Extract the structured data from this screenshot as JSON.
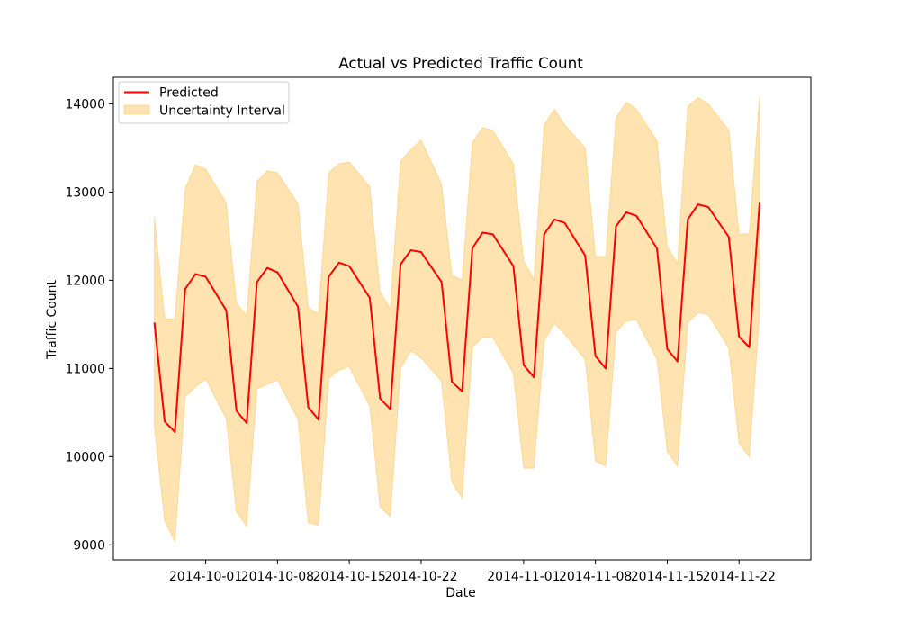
{
  "chart_data": {
    "type": "line",
    "title": "Actual vs Predicted Traffic Count",
    "xlabel": "Date",
    "ylabel": "Traffic Count",
    "xlim": [
      "2014-09-22",
      "2014-11-29"
    ],
    "ylim": [
      8830,
      14300
    ],
    "x_ticks": [
      "2014-10-01",
      "2014-10-08",
      "2014-10-15",
      "2014-10-22",
      "2014-11-01",
      "2014-11-08",
      "2014-11-15",
      "2014-11-22"
    ],
    "y_ticks": [
      9000,
      10000,
      11000,
      12000,
      13000,
      14000
    ],
    "grid": false,
    "legend_position": "upper left",
    "colors": {
      "predicted": "#ff0000",
      "interval": "#ffa500"
    },
    "series": [
      {
        "name": "Predicted",
        "type": "line",
        "x": [
          "2014-09-26",
          "2014-09-27",
          "2014-09-28",
          "2014-09-29",
          "2014-09-30",
          "2014-10-01",
          "2014-10-03",
          "2014-10-04",
          "2014-10-05",
          "2014-10-06",
          "2014-10-07",
          "2014-10-08",
          "2014-10-10",
          "2014-10-11",
          "2014-10-12",
          "2014-10-13",
          "2014-10-14",
          "2014-10-15",
          "2014-10-17",
          "2014-10-18",
          "2014-10-19",
          "2014-10-20",
          "2014-10-21",
          "2014-10-22",
          "2014-10-24",
          "2014-10-25",
          "2014-10-26",
          "2014-10-27",
          "2014-10-28",
          "2014-10-29",
          "2014-10-31",
          "2014-11-01",
          "2014-11-02",
          "2014-11-03",
          "2014-11-04",
          "2014-11-05",
          "2014-11-07",
          "2014-11-08",
          "2014-11-09",
          "2014-11-10",
          "2014-11-11",
          "2014-11-12",
          "2014-11-14",
          "2014-11-15",
          "2014-11-16",
          "2014-11-17",
          "2014-11-18",
          "2014-11-19",
          "2014-11-21",
          "2014-11-22",
          "2014-11-23",
          "2014-11-24"
        ],
        "y": [
          11520,
          10400,
          10280,
          11900,
          12070,
          12040,
          11660,
          10520,
          10380,
          11980,
          12140,
          12090,
          11700,
          10560,
          10420,
          12040,
          12200,
          12160,
          11800,
          10660,
          10540,
          12180,
          12340,
          12320,
          11980,
          10850,
          10740,
          12360,
          12540,
          12520,
          12160,
          11040,
          10900,
          12520,
          12690,
          12650,
          12280,
          11140,
          11000,
          12610,
          12770,
          12730,
          12360,
          11220,
          11080,
          12690,
          12860,
          12830,
          12490,
          11360,
          11240,
          12880
        ]
      },
      {
        "name": "Uncertainty Interval",
        "type": "band",
        "x": [
          "2014-09-26",
          "2014-09-27",
          "2014-09-28",
          "2014-09-29",
          "2014-09-30",
          "2014-10-01",
          "2014-10-03",
          "2014-10-04",
          "2014-10-05",
          "2014-10-06",
          "2014-10-07",
          "2014-10-08",
          "2014-10-10",
          "2014-10-11",
          "2014-10-12",
          "2014-10-13",
          "2014-10-14",
          "2014-10-15",
          "2014-10-17",
          "2014-10-18",
          "2014-10-19",
          "2014-10-20",
          "2014-10-21",
          "2014-10-22",
          "2014-10-24",
          "2014-10-25",
          "2014-10-26",
          "2014-10-27",
          "2014-10-28",
          "2014-10-29",
          "2014-10-31",
          "2014-11-01",
          "2014-11-02",
          "2014-11-03",
          "2014-11-04",
          "2014-11-05",
          "2014-11-07",
          "2014-11-08",
          "2014-11-09",
          "2014-11-10",
          "2014-11-11",
          "2014-11-12",
          "2014-11-14",
          "2014-11-15",
          "2014-11-16",
          "2014-11-17",
          "2014-11-18",
          "2014-11-19",
          "2014-11-21",
          "2014-11-22",
          "2014-11-23",
          "2014-11-24"
        ],
        "upper": [
          12720,
          11560,
          11560,
          13040,
          13310,
          13260,
          12880,
          11740,
          11600,
          13120,
          13240,
          13220,
          12870,
          11690,
          11620,
          13220,
          13320,
          13340,
          13060,
          11870,
          11680,
          13350,
          13480,
          13590,
          13090,
          12060,
          12000,
          13560,
          13730,
          13700,
          13320,
          12220,
          12010,
          13760,
          13940,
          13760,
          13500,
          12270,
          12270,
          13840,
          14020,
          13940,
          13580,
          12380,
          12190,
          13970,
          14070,
          14000,
          13700,
          12520,
          12530,
          14080
        ],
        "lower": [
          10350,
          9270,
          9040,
          10680,
          10790,
          10880,
          10430,
          9370,
          9210,
          10770,
          10820,
          10870,
          10420,
          9250,
          9220,
          10890,
          10980,
          11020,
          10570,
          9430,
          9320,
          11000,
          11200,
          11120,
          10850,
          9710,
          9530,
          11240,
          11350,
          11350,
          10940,
          9870,
          9870,
          11310,
          11510,
          11390,
          11100,
          9950,
          9890,
          11410,
          11540,
          11550,
          11100,
          10060,
          9890,
          11520,
          11630,
          11610,
          11230,
          10150,
          10000,
          11620
        ]
      }
    ]
  }
}
